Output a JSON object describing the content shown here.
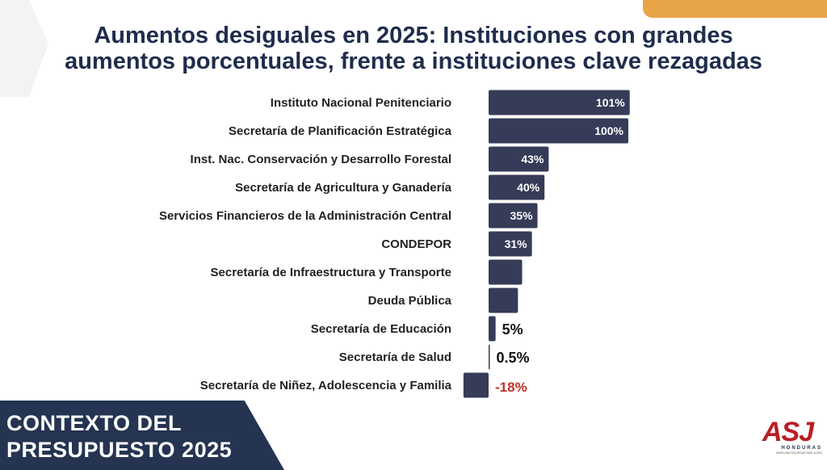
{
  "title": {
    "line1": "Aumentos desiguales en 2025: Instituciones con grandes",
    "line2": "aumentos porcentuales, frente a instituciones clave rezagadas"
  },
  "footer": {
    "line1": "CONTEXTO DEL",
    "line2": "PRESUPUESTO 2025"
  },
  "logo": {
    "main": "ASJ",
    "sub": "HONDURAS",
    "tagline": "PARA UNA SOCIEDAD MÁS JUSTA"
  },
  "colors": {
    "bar": "#363b57",
    "title": "#1f2d4d",
    "accent": "#e8a449",
    "negative_label": "#c0302a",
    "footer_bg": "#243451",
    "logo_red": "#b81f24"
  },
  "chart_data": {
    "type": "bar",
    "orientation": "horizontal",
    "title": "Aumentos desiguales en 2025: Instituciones con grandes aumentos porcentuales, frente a instituciones clave rezagadas",
    "categories": [
      "Instituto Nacional Penitenciario",
      "Secretaría de Planificación Estratégica",
      "Inst. Nac. Conservación y Desarrollo Forestal",
      "Secretaría de Agricultura y Ganadería",
      "Servicios Financieros de la Administración Central",
      "CONDEPOR",
      "Secretaría de Infraestructura y Transporte",
      "Deuda Pública",
      "Secretaría de Educación",
      "Secretaría de Salud",
      "Secretaría de Niñez, Adolescencia y Familia"
    ],
    "values": [
      101,
      100,
      43,
      40,
      35,
      31,
      24,
      21,
      5,
      0.5,
      -18
    ],
    "labels": [
      "101%",
      "100%",
      "43%",
      "40%",
      "35%",
      "31%",
      "",
      "",
      "5%",
      "0.5%",
      "-18%"
    ],
    "label_position": [
      "inside",
      "inside",
      "inside",
      "inside",
      "inside",
      "inside",
      "none",
      "none",
      "outside",
      "outside",
      "outside"
    ],
    "xlabel": "",
    "ylabel": "",
    "xlim": [
      -18,
      101
    ],
    "grid": false,
    "legend": "none"
  }
}
